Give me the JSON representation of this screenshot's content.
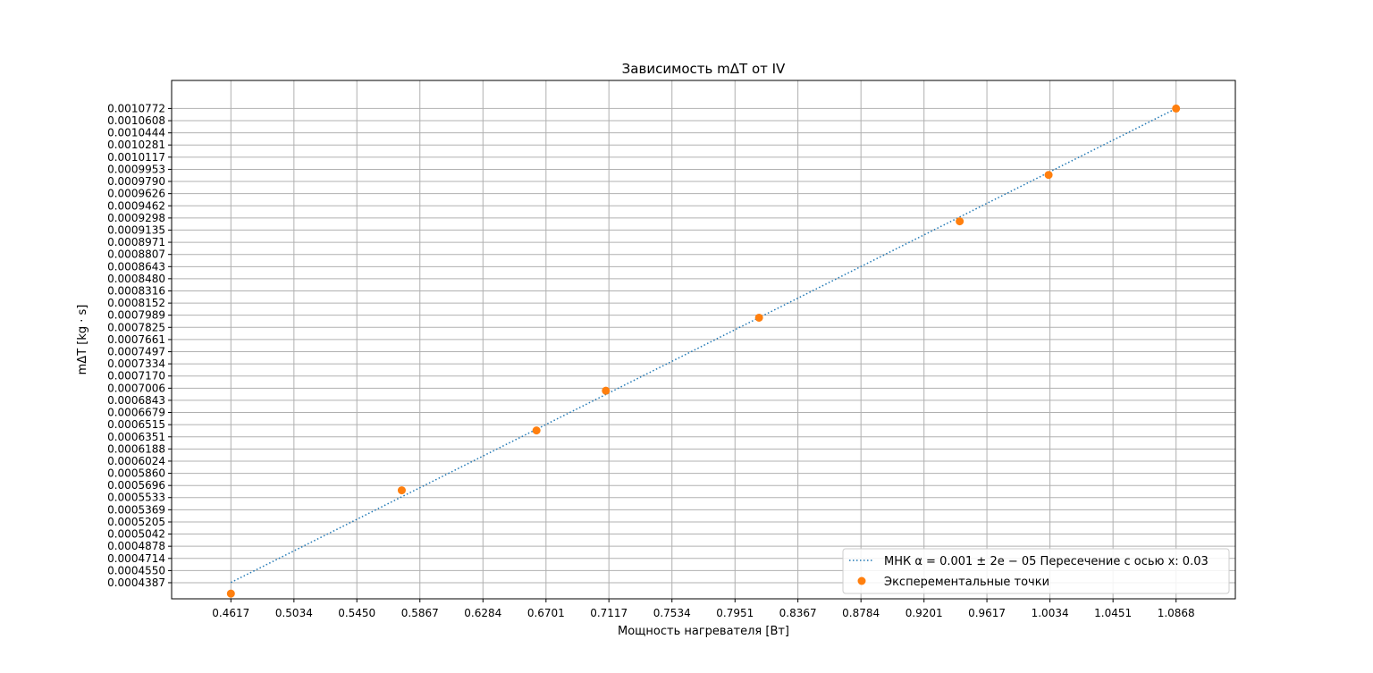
{
  "chart_data": {
    "type": "scatter",
    "title": "Зависимость mΔT от IV",
    "xlabel": "Мощность нагревателя [Вт]",
    "ylabel": "mΔT [kg · s]",
    "grid": true,
    "legend_position": "bottom-right",
    "xlim": [
      0.4225,
      1.126
    ],
    "ylim": [
      0.000417,
      0.001115
    ],
    "x_ticks": [
      "0.4617",
      "0.5034",
      "0.5450",
      "0.5867",
      "0.6284",
      "0.6701",
      "0.7117",
      "0.7534",
      "0.7951",
      "0.8367",
      "0.8784",
      "0.9201",
      "0.9617",
      "1.0034",
      "1.0451",
      "1.0868"
    ],
    "y_ticks": [
      "0.0004387",
      "0.0004550",
      "0.0004714",
      "0.0004878",
      "0.0005042",
      "0.0005205",
      "0.0005369",
      "0.0005533",
      "0.0005696",
      "0.0005860",
      "0.0006024",
      "0.0006188",
      "0.0006351",
      "0.0006515",
      "0.0006679",
      "0.0006843",
      "0.0007006",
      "0.0007170",
      "0.0007334",
      "0.0007497",
      "0.0007661",
      "0.0007825",
      "0.0007989",
      "0.0008152",
      "0.0008316",
      "0.0008480",
      "0.0008643",
      "0.0008807",
      "0.0008971",
      "0.0009135",
      "0.0009298",
      "0.0009462",
      "0.0009626",
      "0.0009790",
      "0.0009953",
      "0.0010117",
      "0.0010281",
      "0.0010444",
      "0.0010608",
      "0.0010772"
    ],
    "series": [
      {
        "name": "МНК α = 0.001 ± 2e − 05  Пересечение с осью x: 0.03",
        "kind": "line",
        "style": "dotted",
        "color": "#1f77b4",
        "x": [
          0.4617,
          1.0868
        ],
        "y": [
          0.000439,
          0.0010772
        ]
      },
      {
        "name": "Эксперементальные точки",
        "kind": "scatter",
        "color": "#ff7f0e",
        "x": [
          0.4617,
          0.5747,
          0.6638,
          0.7097,
          0.811,
          0.9437,
          1.0025,
          1.0868
        ],
        "y": [
          0.000424,
          0.0005631,
          0.0006437,
          0.0006972,
          0.0007955,
          0.0009253,
          0.0009878,
          0.0010772
        ]
      }
    ]
  }
}
